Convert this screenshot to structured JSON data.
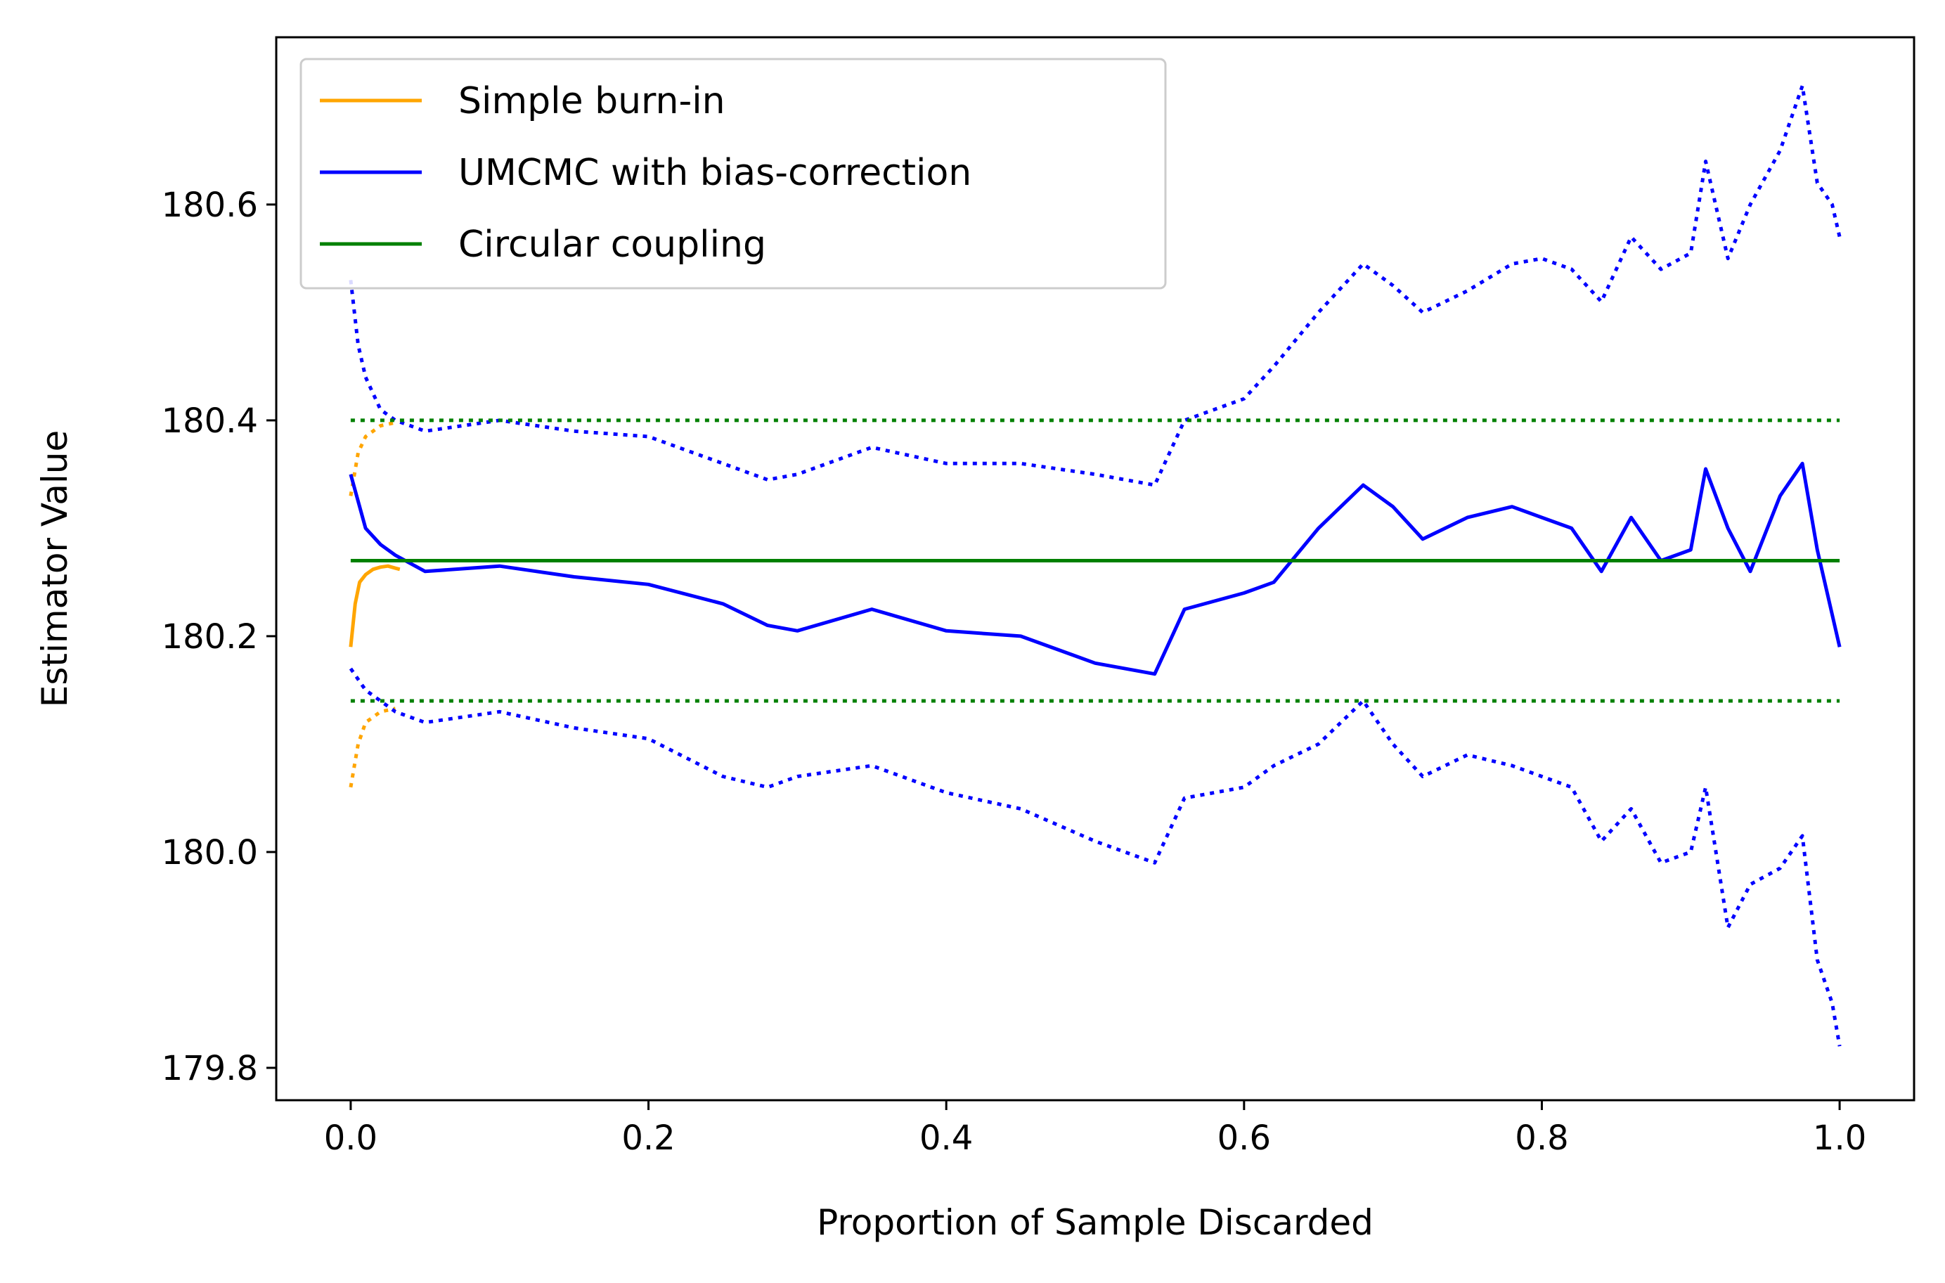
{
  "chart_data": {
    "type": "line",
    "title": "",
    "xlabel": "Proportion of Sample Discarded",
    "ylabel": "Estimator Value",
    "xlim": [
      -0.05,
      1.05
    ],
    "ylim": [
      179.77,
      180.755
    ],
    "xticks": [
      0.0,
      0.2,
      0.4,
      0.6,
      0.8,
      1.0
    ],
    "xtick_labels": [
      "0.0",
      "0.2",
      "0.4",
      "0.6",
      "0.8",
      "1.0"
    ],
    "yticks": [
      179.8,
      180.0,
      180.2,
      180.4,
      180.6
    ],
    "ytick_labels": [
      "179.8",
      "180.0",
      "180.2",
      "180.4",
      "180.6"
    ],
    "grid": false,
    "legend_position": "top-left",
    "legend": [
      {
        "label": "Simple burn-in",
        "color": "#FFA500"
      },
      {
        "label": "UMCMC with bias-correction",
        "color": "#0000FF"
      },
      {
        "label": "Circular coupling",
        "color": "#008000"
      }
    ],
    "series": [
      {
        "name": "Simple burn-in",
        "color": "#FFA500",
        "style": "solid",
        "x": [
          0.0,
          0.003,
          0.006,
          0.01,
          0.015,
          0.02,
          0.025,
          0.03,
          0.033
        ],
        "y": [
          180.19,
          180.23,
          180.25,
          180.257,
          180.262,
          180.264,
          180.265,
          180.263,
          180.262
        ]
      },
      {
        "name": "Simple burn-in upper band",
        "color": "#FFA500",
        "style": "dotted",
        "x": [
          0.0,
          0.005,
          0.01,
          0.02,
          0.03
        ],
        "y": [
          180.33,
          180.37,
          180.385,
          180.395,
          180.398
        ]
      },
      {
        "name": "Simple burn-in lower band",
        "color": "#FFA500",
        "style": "dotted",
        "x": [
          0.0,
          0.005,
          0.01,
          0.02,
          0.03
        ],
        "y": [
          180.06,
          180.1,
          180.12,
          180.13,
          180.133
        ]
      },
      {
        "name": "UMCMC with bias-correction",
        "color": "#0000FF",
        "style": "solid",
        "x": [
          0.0,
          0.01,
          0.02,
          0.03,
          0.05,
          0.1,
          0.15,
          0.2,
          0.25,
          0.28,
          0.3,
          0.35,
          0.4,
          0.45,
          0.5,
          0.54,
          0.56,
          0.6,
          0.62,
          0.65,
          0.68,
          0.7,
          0.72,
          0.75,
          0.78,
          0.8,
          0.82,
          0.84,
          0.86,
          0.88,
          0.9,
          0.91,
          0.925,
          0.94,
          0.96,
          0.975,
          0.985,
          0.995,
          1.0
        ],
        "y": [
          180.35,
          180.3,
          180.285,
          180.275,
          180.26,
          180.265,
          180.255,
          180.248,
          180.23,
          180.21,
          180.205,
          180.225,
          180.205,
          180.2,
          180.175,
          180.165,
          180.225,
          180.24,
          180.25,
          180.3,
          180.34,
          180.32,
          180.29,
          180.31,
          180.32,
          180.31,
          180.3,
          180.26,
          180.31,
          180.27,
          180.28,
          180.355,
          180.3,
          180.26,
          180.33,
          180.36,
          180.28,
          180.22,
          180.19
        ]
      },
      {
        "name": "UMCMC upper band",
        "color": "#0000FF",
        "style": "dotted",
        "x": [
          0.0,
          0.005,
          0.01,
          0.02,
          0.03,
          0.05,
          0.1,
          0.15,
          0.2,
          0.25,
          0.28,
          0.3,
          0.35,
          0.4,
          0.45,
          0.5,
          0.54,
          0.56,
          0.6,
          0.62,
          0.65,
          0.68,
          0.7,
          0.72,
          0.75,
          0.78,
          0.8,
          0.82,
          0.84,
          0.86,
          0.88,
          0.9,
          0.91,
          0.925,
          0.94,
          0.96,
          0.975,
          0.985,
          0.995,
          1.0
        ],
        "y": [
          180.53,
          180.47,
          180.44,
          180.41,
          180.4,
          180.39,
          180.4,
          180.39,
          180.385,
          180.36,
          180.345,
          180.35,
          180.375,
          180.36,
          180.36,
          180.35,
          180.34,
          180.4,
          180.42,
          180.45,
          180.5,
          180.545,
          180.525,
          180.5,
          180.52,
          180.545,
          180.55,
          180.54,
          180.51,
          180.57,
          180.54,
          180.555,
          180.64,
          180.55,
          180.6,
          180.65,
          180.71,
          180.62,
          180.6,
          180.57
        ]
      },
      {
        "name": "UMCMC lower band",
        "color": "#0000FF",
        "style": "dotted",
        "x": [
          0.0,
          0.005,
          0.01,
          0.02,
          0.03,
          0.05,
          0.1,
          0.15,
          0.2,
          0.25,
          0.28,
          0.3,
          0.35,
          0.4,
          0.45,
          0.5,
          0.54,
          0.56,
          0.6,
          0.62,
          0.65,
          0.68,
          0.7,
          0.72,
          0.75,
          0.78,
          0.8,
          0.82,
          0.84,
          0.86,
          0.88,
          0.9,
          0.91,
          0.925,
          0.94,
          0.96,
          0.975,
          0.985,
          0.995,
          1.0
        ],
        "y": [
          180.17,
          180.16,
          180.15,
          180.14,
          180.13,
          180.12,
          180.13,
          180.115,
          180.105,
          180.07,
          180.06,
          180.07,
          180.08,
          180.055,
          180.04,
          180.01,
          179.99,
          180.05,
          180.06,
          180.08,
          180.1,
          180.14,
          180.1,
          180.07,
          180.09,
          180.08,
          180.07,
          180.06,
          180.01,
          180.04,
          179.99,
          180.0,
          180.06,
          179.93,
          179.97,
          179.985,
          180.015,
          179.9,
          179.86,
          179.82
        ]
      },
      {
        "name": "Circular coupling",
        "color": "#008000",
        "style": "solid",
        "x": [
          0.0,
          1.0
        ],
        "y": [
          180.27,
          180.27
        ]
      },
      {
        "name": "Circular coupling upper band",
        "color": "#008000",
        "style": "dotted",
        "x": [
          0.0,
          1.0
        ],
        "y": [
          180.4,
          180.4
        ]
      },
      {
        "name": "Circular coupling lower band",
        "color": "#008000",
        "style": "dotted",
        "x": [
          0.0,
          1.0
        ],
        "y": [
          180.14,
          180.14
        ]
      }
    ]
  }
}
